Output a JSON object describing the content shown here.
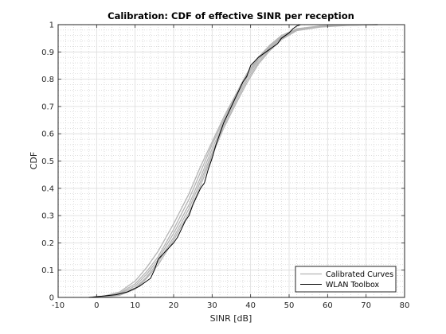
{
  "chart_data": {
    "type": "line",
    "title": "Calibration: CDF of effective SINR per reception",
    "xlabel": "SINR [dB]",
    "ylabel": "CDF",
    "xlim": [
      -10,
      80
    ],
    "ylim": [
      0,
      1
    ],
    "x_ticks": [
      -10,
      0,
      10,
      20,
      30,
      40,
      50,
      60,
      70,
      80
    ],
    "y_ticks": [
      0,
      0.1,
      0.2,
      0.3,
      0.4,
      0.5,
      0.6,
      0.7,
      0.8,
      0.9,
      1
    ],
    "x_tick_labels": [
      "-10",
      "0",
      "10",
      "20",
      "30",
      "40",
      "50",
      "60",
      "70",
      "80"
    ],
    "y_tick_labels": [
      "0",
      "0.1",
      "0.2",
      "0.3",
      "0.4",
      "0.5",
      "0.6",
      "0.7",
      "0.8",
      "0.9",
      "1"
    ],
    "grid": "major and minor",
    "legend_position": "bottom-right",
    "legend": [
      "Calibrated Curves",
      "WLAN Toolbox"
    ],
    "colors": {
      "calibrated": "#b4b4b4",
      "wlan": "#000000",
      "grid": "#dcdcdc"
    },
    "series": [
      {
        "name": "Calibrated Curves",
        "group": "calibrated",
        "x": [
          -2,
          2,
          6,
          10,
          13,
          16,
          20,
          24,
          27,
          30,
          33,
          36,
          39,
          42,
          45,
          48,
          52,
          58,
          65,
          73
        ],
        "y": [
          0,
          0.005,
          0.02,
          0.06,
          0.11,
          0.17,
          0.27,
          0.38,
          0.48,
          0.57,
          0.66,
          0.74,
          0.82,
          0.88,
          0.925,
          0.96,
          0.985,
          0.995,
          0.999,
          1
        ]
      },
      {
        "group": "calibrated",
        "x": [
          -2,
          2,
          6,
          10,
          13,
          16,
          20,
          24,
          27,
          30,
          33,
          36,
          39,
          42,
          45,
          48,
          52,
          58,
          65,
          73
        ],
        "y": [
          0,
          0.004,
          0.016,
          0.05,
          0.095,
          0.15,
          0.25,
          0.36,
          0.46,
          0.56,
          0.65,
          0.735,
          0.815,
          0.875,
          0.92,
          0.955,
          0.983,
          0.994,
          0.999,
          1
        ]
      },
      {
        "group": "calibrated",
        "x": [
          -2,
          2,
          6,
          10,
          13,
          16,
          20,
          24,
          27,
          30,
          33,
          36,
          39,
          42,
          45,
          48,
          52,
          58,
          65,
          73
        ],
        "y": [
          0,
          0.003,
          0.013,
          0.042,
          0.085,
          0.14,
          0.235,
          0.34,
          0.44,
          0.545,
          0.64,
          0.725,
          0.805,
          0.87,
          0.915,
          0.952,
          0.981,
          0.993,
          0.998,
          1
        ]
      },
      {
        "group": "calibrated",
        "x": [
          -2,
          2,
          6,
          10,
          13,
          16,
          20,
          24,
          27,
          30,
          33,
          36,
          39,
          42,
          45,
          48,
          52,
          58,
          65,
          73
        ],
        "y": [
          0,
          0.002,
          0.01,
          0.035,
          0.075,
          0.13,
          0.22,
          0.325,
          0.425,
          0.53,
          0.63,
          0.715,
          0.795,
          0.862,
          0.91,
          0.948,
          0.979,
          0.992,
          0.998,
          1
        ]
      },
      {
        "group": "calibrated",
        "x": [
          -2,
          2,
          6,
          10,
          13,
          16,
          20,
          24,
          27,
          30,
          33,
          36,
          39,
          42,
          45,
          48,
          52,
          58,
          65,
          73
        ],
        "y": [
          0,
          0.002,
          0.008,
          0.03,
          0.07,
          0.12,
          0.21,
          0.31,
          0.41,
          0.52,
          0.62,
          0.705,
          0.785,
          0.855,
          0.905,
          0.945,
          0.978,
          0.991,
          0.997,
          1
        ]
      },
      {
        "name": "WLAN Toolbox",
        "group": "wlan",
        "x": [
          -2,
          5,
          8,
          11,
          14,
          15,
          16,
          18,
          20,
          21,
          22,
          23,
          24,
          25,
          26,
          27,
          28,
          29,
          30,
          31,
          32,
          33,
          34,
          35,
          36,
          37,
          38,
          39,
          40,
          41,
          42,
          43,
          44,
          45,
          46,
          47,
          48,
          49,
          50,
          51,
          52,
          53
        ],
        "y": [
          0,
          0.01,
          0.02,
          0.04,
          0.07,
          0.1,
          0.14,
          0.17,
          0.2,
          0.22,
          0.25,
          0.28,
          0.3,
          0.34,
          0.37,
          0.4,
          0.42,
          0.47,
          0.51,
          0.56,
          0.6,
          0.64,
          0.67,
          0.7,
          0.73,
          0.76,
          0.79,
          0.81,
          0.85,
          0.865,
          0.88,
          0.89,
          0.9,
          0.91,
          0.92,
          0.93,
          0.95,
          0.96,
          0.97,
          0.985,
          0.995,
          1
        ]
      }
    ]
  }
}
